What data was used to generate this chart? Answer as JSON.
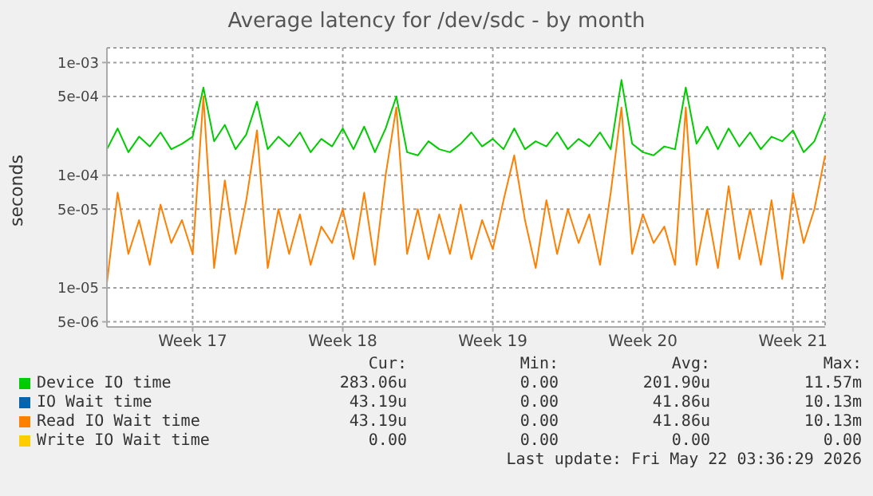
{
  "chart_data": {
    "type": "line",
    "title": "Average latency for /dev/sdc - by month",
    "ylabel": "seconds",
    "categories": [
      null,
      null,
      null,
      null,
      null,
      null,
      null,
      null,
      "Week 17",
      null,
      null,
      null,
      null,
      null,
      null,
      null,
      null,
      null,
      null,
      null,
      null,
      null,
      "Week 18",
      null,
      null,
      null,
      null,
      null,
      null,
      null,
      null,
      null,
      null,
      null,
      null,
      null,
      "Week 19",
      null,
      null,
      null,
      null,
      null,
      null,
      null,
      null,
      null,
      null,
      null,
      null,
      null,
      "Week 20",
      null,
      null,
      null,
      null,
      null,
      null,
      null,
      null,
      null,
      null,
      null,
      null,
      null,
      "Week 21",
      null,
      null,
      null
    ],
    "series": [
      {
        "name": "Device IO time",
        "color": "#00cc00",
        "values": [
          0.00017,
          0.00026,
          0.00016,
          0.00022,
          0.00018,
          0.00024,
          0.00017,
          0.00019,
          0.00022,
          0.0006,
          0.0002,
          0.00028,
          0.00017,
          0.00023,
          0.00045,
          0.00017,
          0.00022,
          0.00018,
          0.00024,
          0.00016,
          0.00021,
          0.00018,
          0.00026,
          0.00017,
          0.00027,
          0.00016,
          0.00026,
          0.0005,
          0.00016,
          0.00015,
          0.0002,
          0.00017,
          0.00016,
          0.00019,
          0.00024,
          0.00018,
          0.00021,
          0.00017,
          0.00026,
          0.00017,
          0.0002,
          0.00018,
          0.00024,
          0.00017,
          0.00021,
          0.00018,
          0.00024,
          0.00017,
          0.0007,
          0.00019,
          0.00016,
          0.00015,
          0.00018,
          0.00017,
          0.0006,
          0.00019,
          0.00027,
          0.00017,
          0.00026,
          0.00018,
          0.00024,
          0.00017,
          0.00022,
          0.0002,
          0.00025,
          0.00016,
          0.0002,
          0.00035
        ]
      },
      {
        "name": "IO Wait time",
        "color": "#0066b3",
        "values": [
          null,
          null,
          null,
          null,
          null,
          null,
          null,
          null,
          null,
          null,
          null,
          null,
          null,
          null,
          null,
          null,
          null,
          null,
          null,
          null,
          null,
          null,
          null,
          null,
          null,
          null,
          null,
          null,
          null,
          null,
          null,
          null,
          null,
          null,
          null,
          null,
          null,
          null,
          null,
          null,
          null,
          null,
          null,
          null,
          null,
          null,
          null,
          null,
          null,
          null,
          null,
          null,
          null,
          null,
          null,
          null,
          null,
          null,
          null,
          null,
          null,
          null,
          null,
          null,
          null,
          null,
          null,
          null
        ]
      },
      {
        "name": "Read IO Wait time",
        "color": "#ff8000",
        "values": [
          1.1e-05,
          7e-05,
          2e-05,
          4e-05,
          1.6e-05,
          5.5e-05,
          2.5e-05,
          4e-05,
          2e-05,
          0.0005,
          1.5e-05,
          9e-05,
          2e-05,
          6e-05,
          0.00025,
          1.5e-05,
          5e-05,
          2e-05,
          4.5e-05,
          1.6e-05,
          3.5e-05,
          2.5e-05,
          5e-05,
          1.8e-05,
          7e-05,
          1.6e-05,
          0.0001,
          0.0004,
          2e-05,
          5e-05,
          1.8e-05,
          4.5e-05,
          2e-05,
          5.5e-05,
          1.8e-05,
          4e-05,
          2.2e-05,
          6e-05,
          0.00015,
          4e-05,
          1.5e-05,
          6e-05,
          2e-05,
          5e-05,
          2.5e-05,
          4.5e-05,
          1.6e-05,
          7e-05,
          0.0004,
          2e-05,
          4.5e-05,
          2.5e-05,
          3.5e-05,
          1.6e-05,
          0.0004,
          1.6e-05,
          5e-05,
          1.5e-05,
          8e-05,
          1.8e-05,
          5e-05,
          1.6e-05,
          6e-05,
          1.2e-05,
          7e-05,
          2.5e-05,
          5e-05,
          0.00015
        ]
      },
      {
        "name": "Write IO Wait time",
        "color": "#ffcc00",
        "values": [
          null,
          null,
          null,
          null,
          null,
          null,
          null,
          null,
          null,
          null,
          null,
          null,
          null,
          null,
          null,
          null,
          null,
          null,
          null,
          null,
          null,
          null,
          null,
          null,
          null,
          null,
          null,
          null,
          null,
          null,
          null,
          null,
          null,
          null,
          null,
          null,
          null,
          null,
          null,
          null,
          null,
          null,
          null,
          null,
          null,
          null,
          null,
          null,
          null,
          null,
          null,
          null,
          null,
          null,
          null,
          null,
          null,
          null,
          null,
          null,
          null,
          null,
          null,
          null,
          null,
          null,
          null,
          null
        ]
      }
    ],
    "ylim": [
      4.5e-06,
      0.00135
    ],
    "yticks": [
      {
        "value": 5e-06,
        "label": "5e-06"
      },
      {
        "value": 1e-05,
        "label": "1e-05"
      },
      {
        "value": 5e-05,
        "label": "5e-05"
      },
      {
        "value": 0.0001,
        "label": "1e-04"
      },
      {
        "value": 0.0005,
        "label": "5e-04"
      },
      {
        "value": 0.001,
        "label": "1e-03"
      }
    ],
    "log": "y",
    "grid": true,
    "legend": "bottom",
    "marker": "none",
    "line_style": "solid",
    "annotations": [
      "Cur:",
      "Min:",
      "Avg:",
      "Max:",
      "283.06u",
      "0.00",
      "201.90u",
      "11.57m",
      "43.19u",
      "0.00",
      "41.86u",
      "10.13m",
      "43.19u",
      "0.00",
      "41.86u",
      "10.13m",
      "0.00",
      "0.00",
      "0.00",
      "0.00",
      "Last update: Fri May 22 03:36:29 2026"
    ]
  }
}
